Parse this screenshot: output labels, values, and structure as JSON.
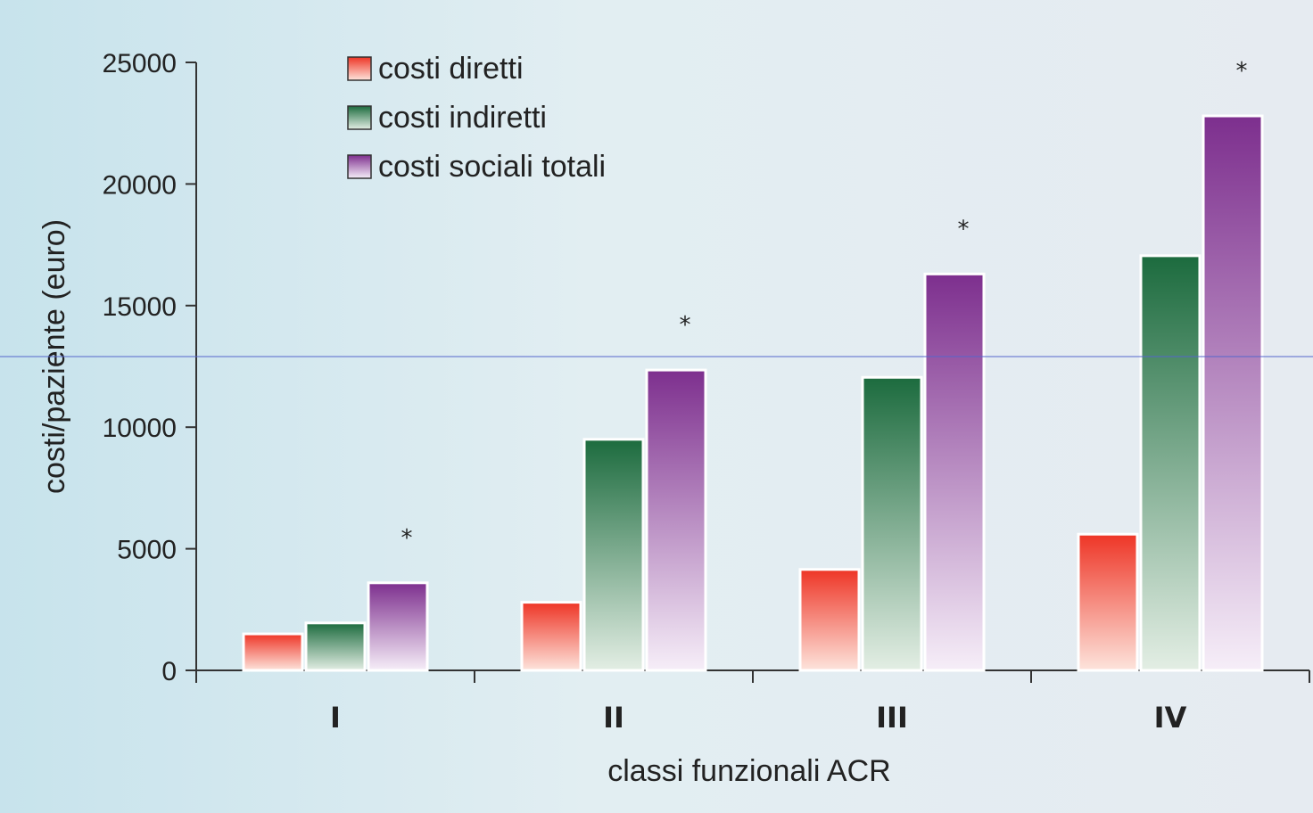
{
  "chart_data": {
    "type": "bar",
    "categories": [
      "I",
      "II",
      "III",
      "IV"
    ],
    "series": [
      {
        "name": "costi diretti",
        "values": [
          1500,
          2800,
          4150,
          5600
        ],
        "color_top": "#ee3526",
        "color_bottom": "#fde4dc"
      },
      {
        "name": "costi indiretti",
        "values": [
          1950,
          9500,
          12050,
          17050
        ],
        "color_top": "#1c6b3e",
        "color_bottom": "#e3eee4"
      },
      {
        "name": "costi sociali totali",
        "values": [
          3600,
          12350,
          16300,
          22800
        ],
        "color_top": "#7d2f8e",
        "color_bottom": "#f6eef8"
      }
    ],
    "annotations": [
      "*",
      "*",
      "*",
      "*"
    ],
    "xlabel": "classi funzionali ACR",
    "ylabel": "costi/paziente  (euro)",
    "yticks": [
      0,
      5000,
      10000,
      15000,
      20000,
      25000
    ],
    "ylim": [
      0,
      25000
    ],
    "grid": false,
    "legend_position": "top-left"
  },
  "colors": {
    "background_left": "#c7e3ec",
    "background_right": "#e6ebf1",
    "axis": "#333333",
    "guide_line": "#5566cc"
  }
}
